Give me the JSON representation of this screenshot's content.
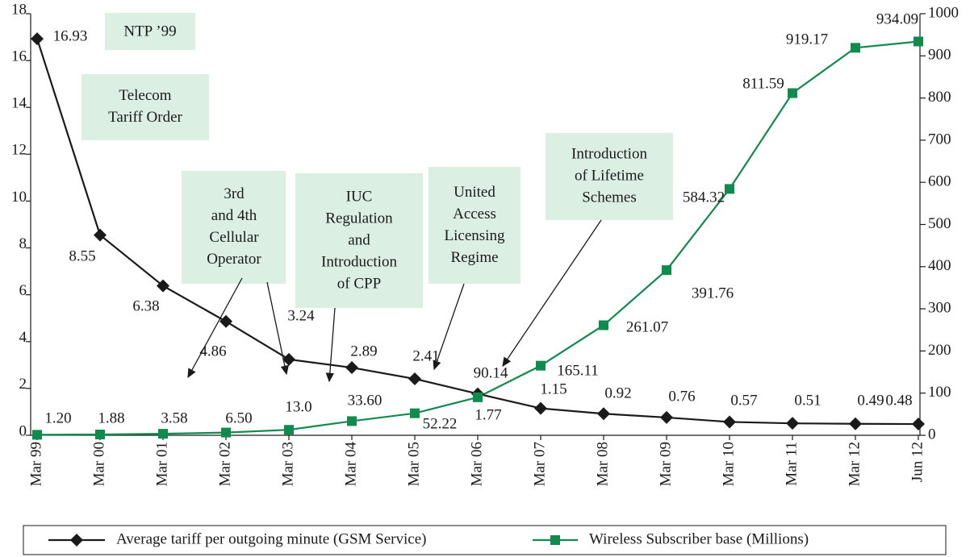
{
  "chart_data": {
    "type": "line",
    "categories": [
      "Mar 99",
      "Mar 00",
      "Mar 01",
      "Mar 02",
      "Mar 03",
      "Mar 04",
      "Mar 05",
      "Mar 06",
      "Mar 07",
      "Mar 08",
      "Mar 09",
      "Mar 10",
      "Mar 11",
      "Mar 12",
      "Jun 12"
    ],
    "series": [
      {
        "name": "Average tariff per outgoing minute (GSM Service)",
        "color": "#1a1a1a",
        "marker": "diamond",
        "values": [
          16.93,
          8.55,
          6.38,
          4.86,
          3.24,
          2.89,
          2.41,
          1.77,
          1.15,
          0.92,
          0.76,
          0.57,
          0.51,
          0.49,
          0.48
        ],
        "value_labels": [
          "16.93",
          "8.55",
          "6.38",
          "4.86",
          "3.24",
          "2.89",
          "2.41",
          "1.77",
          "1.15",
          "0.92",
          "0.76",
          "0.57",
          "0.51",
          "0.49",
          "0.48"
        ]
      },
      {
        "name": "Wireless Subscriber base (Millions)",
        "color": "#118a4e",
        "marker": "square",
        "axis": "y2",
        "values": [
          1.2,
          1.88,
          3.58,
          6.5,
          13.0,
          33.6,
          52.22,
          90.14,
          165.11,
          261.07,
          391.76,
          584.32,
          811.59,
          919.17,
          934.09
        ],
        "value_labels": [
          "1.20",
          "1.88",
          "3.58",
          "6.50",
          "13.0",
          "33.60",
          "52.22",
          "90.14",
          "165.11",
          "261.07",
          "391.76",
          "584.32",
          "811.59",
          "919.17",
          "934.09"
        ]
      }
    ],
    "ylim": [
      0,
      18
    ],
    "yticks": [
      0,
      2,
      4,
      6,
      8,
      10,
      12,
      14,
      16,
      18
    ],
    "y2lim": [
      0,
      1000
    ],
    "y2ticks": [
      0,
      100,
      200,
      300,
      400,
      500,
      600,
      700,
      800,
      900,
      1000
    ],
    "annotations": [
      {
        "lines": [
          "NTP ’99"
        ]
      },
      {
        "lines": [
          "Telecom",
          "Tariff Order"
        ]
      },
      {
        "lines": [
          "3rd",
          "and 4th",
          "Cellular",
          "Operator"
        ]
      },
      {
        "lines": [
          "IUC",
          "Regulation",
          "and",
          "Introduction",
          "of CPP"
        ]
      },
      {
        "lines": [
          "United",
          "Access",
          "Licensing",
          "Regime"
        ]
      },
      {
        "lines": [
          "Introduction",
          "of Lifetime",
          "Schemes"
        ]
      }
    ],
    "legend": "bottom"
  }
}
